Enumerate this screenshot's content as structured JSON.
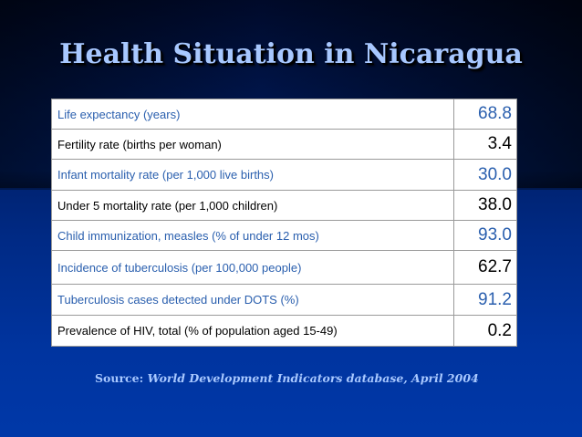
{
  "slide": {
    "title": "Health Situation in Nicaragua",
    "rows": [
      {
        "label": "Life expectancy (years)",
        "value": "68.8",
        "style": "blue"
      },
      {
        "label": "Fertility rate (births per woman)",
        "value": "3.4",
        "style": "black"
      },
      {
        "label": "Infant mortality rate (per 1,000 live births)",
        "value": "30.0",
        "style": "blue"
      },
      {
        "label": "Under 5 mortality rate (per 1,000 children)",
        "value": "38.0",
        "style": "black"
      },
      {
        "label": "Child immunization, measles (% of under 12 mos)",
        "value": "93.0",
        "style": "blue"
      },
      {
        "label": "Incidence of tuberculosis (per 100,000 people)",
        "value": "62.7",
        "style": "black-val"
      },
      {
        "label": "Tuberculosis cases detected under DOTS (%)",
        "value": "91.2",
        "style": "blue"
      },
      {
        "label": "Prevalence of HIV, total (% of population aged 15-49)",
        "value": "0.2",
        "style": "black"
      }
    ],
    "source_prefix": "Source: ",
    "source_ref": "World Development Indicators database, April 2004"
  }
}
